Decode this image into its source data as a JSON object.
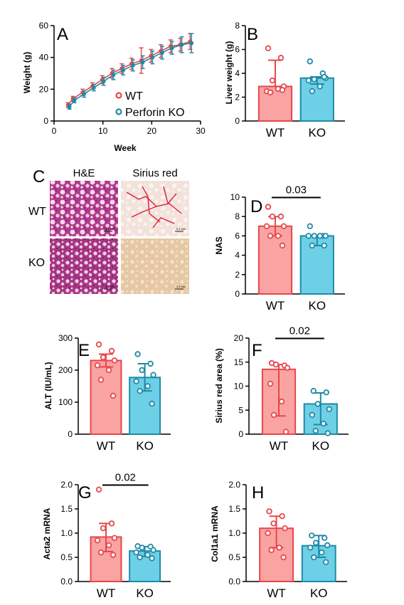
{
  "colors": {
    "wt_fill": "#f9a3a3",
    "wt_stroke": "#e8474a",
    "ko_fill": "#6dd0e6",
    "ko_stroke": "#1f8aa6"
  },
  "histology": {
    "letter": "C",
    "col_headers": [
      "H&E",
      "Sirius red"
    ],
    "row_labels": [
      "WT",
      "KO"
    ],
    "scale_label": "0.1 mm"
  },
  "chart_data": [
    {
      "id": "A",
      "letter": "A",
      "type": "line",
      "xlabel": "Week",
      "ylabel": "Weight (g)",
      "xlim": [
        0,
        30
      ],
      "ylim": [
        0,
        60
      ],
      "xticks": [
        0,
        10,
        20,
        30
      ],
      "yticks": [
        0,
        20,
        40,
        60
      ],
      "series": [
        {
          "name": "WT",
          "key": "wt",
          "x": [
            3,
            4,
            6,
            8,
            10,
            12,
            14,
            16,
            18,
            20,
            22,
            24,
            26,
            28
          ],
          "y": [
            10,
            14,
            18,
            22,
            26,
            30,
            33,
            36,
            38,
            41,
            44,
            47,
            48,
            50
          ],
          "err": [
            1.5,
            1.5,
            2,
            2,
            2.5,
            3,
            3,
            3.5,
            8,
            4,
            4,
            4,
            4,
            5
          ]
        },
        {
          "name": "Perforin KO",
          "key": "ko",
          "x": [
            3,
            4,
            6,
            8,
            10,
            12,
            14,
            16,
            18,
            20,
            22,
            24,
            26,
            28
          ],
          "y": [
            9,
            13,
            17,
            21,
            25,
            29,
            32,
            35,
            37,
            40,
            43,
            46,
            48,
            49
          ],
          "err": [
            1.5,
            1.5,
            2,
            2,
            2.5,
            3,
            3,
            3.5,
            4,
            4,
            4,
            4,
            5,
            6
          ]
        }
      ],
      "grid": false,
      "legend": "lower-right"
    },
    {
      "id": "B",
      "letter": "B",
      "type": "bar",
      "ylabel": "Liver weight (g)",
      "ylim": [
        0,
        8
      ],
      "yticks": [
        0,
        2,
        4,
        6,
        8
      ],
      "categories": [
        "WT",
        "KO"
      ],
      "series": [
        {
          "key": "wt",
          "mean": 2.9,
          "lo": 2.9,
          "hi": 5.1,
          "points": [
            6.1,
            5.3,
            3.4,
            2.9,
            2.5,
            2.7,
            2.4,
            2.6
          ]
        },
        {
          "key": "ko",
          "mean": 3.6,
          "lo": 3.1,
          "hi": 3.7,
          "points": [
            5.0,
            4.0,
            3.5,
            3.6,
            3.4,
            2.9,
            2.5,
            3.7
          ]
        }
      ]
    },
    {
      "id": "D",
      "letter": "D",
      "type": "bar",
      "ylabel": "NAS",
      "ylim": [
        0,
        10
      ],
      "yticks": [
        0,
        2,
        4,
        6,
        8,
        10
      ],
      "categories": [
        "WT",
        "KO"
      ],
      "pvalue": "0.03",
      "series": [
        {
          "key": "wt",
          "mean": 7.0,
          "lo": 6.0,
          "hi": 8.0,
          "points": [
            9,
            8,
            8,
            7,
            7,
            6,
            6,
            5
          ]
        },
        {
          "key": "ko",
          "mean": 6.0,
          "lo": 5.0,
          "hi": 6.0,
          "points": [
            7,
            6,
            6,
            6,
            6,
            6,
            5,
            5
          ]
        }
      ]
    },
    {
      "id": "E",
      "letter": "E",
      "type": "bar",
      "ylabel": "ALT (IU/mL)",
      "ylim": [
        0,
        300
      ],
      "yticks": [
        0,
        100,
        200,
        300
      ],
      "categories": [
        "WT",
        "KO"
      ],
      "series": [
        {
          "key": "wt",
          "mean": 230,
          "lo": 210,
          "hi": 250,
          "points": [
            280,
            260,
            240,
            230,
            215,
            200,
            170,
            120
          ]
        },
        {
          "key": "ko",
          "mean": 177,
          "lo": 135,
          "hi": 220,
          "points": [
            250,
            220,
            200,
            185,
            165,
            150,
            135,
            95
          ]
        }
      ]
    },
    {
      "id": "F",
      "letter": "F",
      "type": "bar",
      "ylabel": "Sirius red area (%)",
      "ylim": [
        0,
        20
      ],
      "yticks": [
        0,
        5,
        10,
        15,
        20
      ],
      "categories": [
        "WT",
        "KO"
      ],
      "pvalue": "0.02",
      "series": [
        {
          "key": "wt",
          "mean": 13.5,
          "lo": 3.8,
          "hi": 14.5,
          "points": [
            14.8,
            14.3,
            14.5,
            13.8,
            10.5,
            6.8,
            4.0,
            0.5
          ]
        },
        {
          "key": "ko",
          "mean": 6.3,
          "lo": 2.0,
          "hi": 8.6,
          "points": [
            9.0,
            8.7,
            6.3,
            5.2,
            4.0,
            2.2,
            0.7,
            0.2
          ]
        }
      ]
    },
    {
      "id": "G",
      "letter": "G",
      "type": "bar",
      "ylabel": "Acta2 mRNA",
      "ylim": [
        0,
        2.0
      ],
      "yticks": [
        0.0,
        0.5,
        1.0,
        1.5,
        2.0
      ],
      "categories": [
        "WT",
        "KO"
      ],
      "pvalue": "0.02",
      "series": [
        {
          "key": "wt",
          "mean": 0.92,
          "lo": 0.62,
          "hi": 1.2,
          "points": [
            1.9,
            1.2,
            1.1,
            0.9,
            0.85,
            0.75,
            0.6,
            0.55
          ]
        },
        {
          "key": "ko",
          "mean": 0.63,
          "lo": 0.52,
          "hi": 0.72,
          "points": [
            0.73,
            0.72,
            0.7,
            0.65,
            0.6,
            0.55,
            0.5,
            0.48
          ]
        }
      ]
    },
    {
      "id": "H",
      "letter": "H",
      "type": "bar",
      "ylabel": "Col1a1 mRNA",
      "ylim": [
        0,
        2.0
      ],
      "yticks": [
        0.0,
        0.5,
        1.0,
        1.5,
        2.0
      ],
      "categories": [
        "WT",
        "KO"
      ],
      "series": [
        {
          "key": "wt",
          "mean": 1.1,
          "lo": 0.7,
          "hi": 1.35,
          "points": [
            1.45,
            1.35,
            1.2,
            1.1,
            1.0,
            0.7,
            0.65,
            0.5
          ]
        },
        {
          "key": "ko",
          "mean": 0.74,
          "lo": 0.5,
          "hi": 0.95,
          "points": [
            0.95,
            0.9,
            0.8,
            0.75,
            0.7,
            0.6,
            0.5,
            0.4
          ]
        }
      ]
    }
  ]
}
